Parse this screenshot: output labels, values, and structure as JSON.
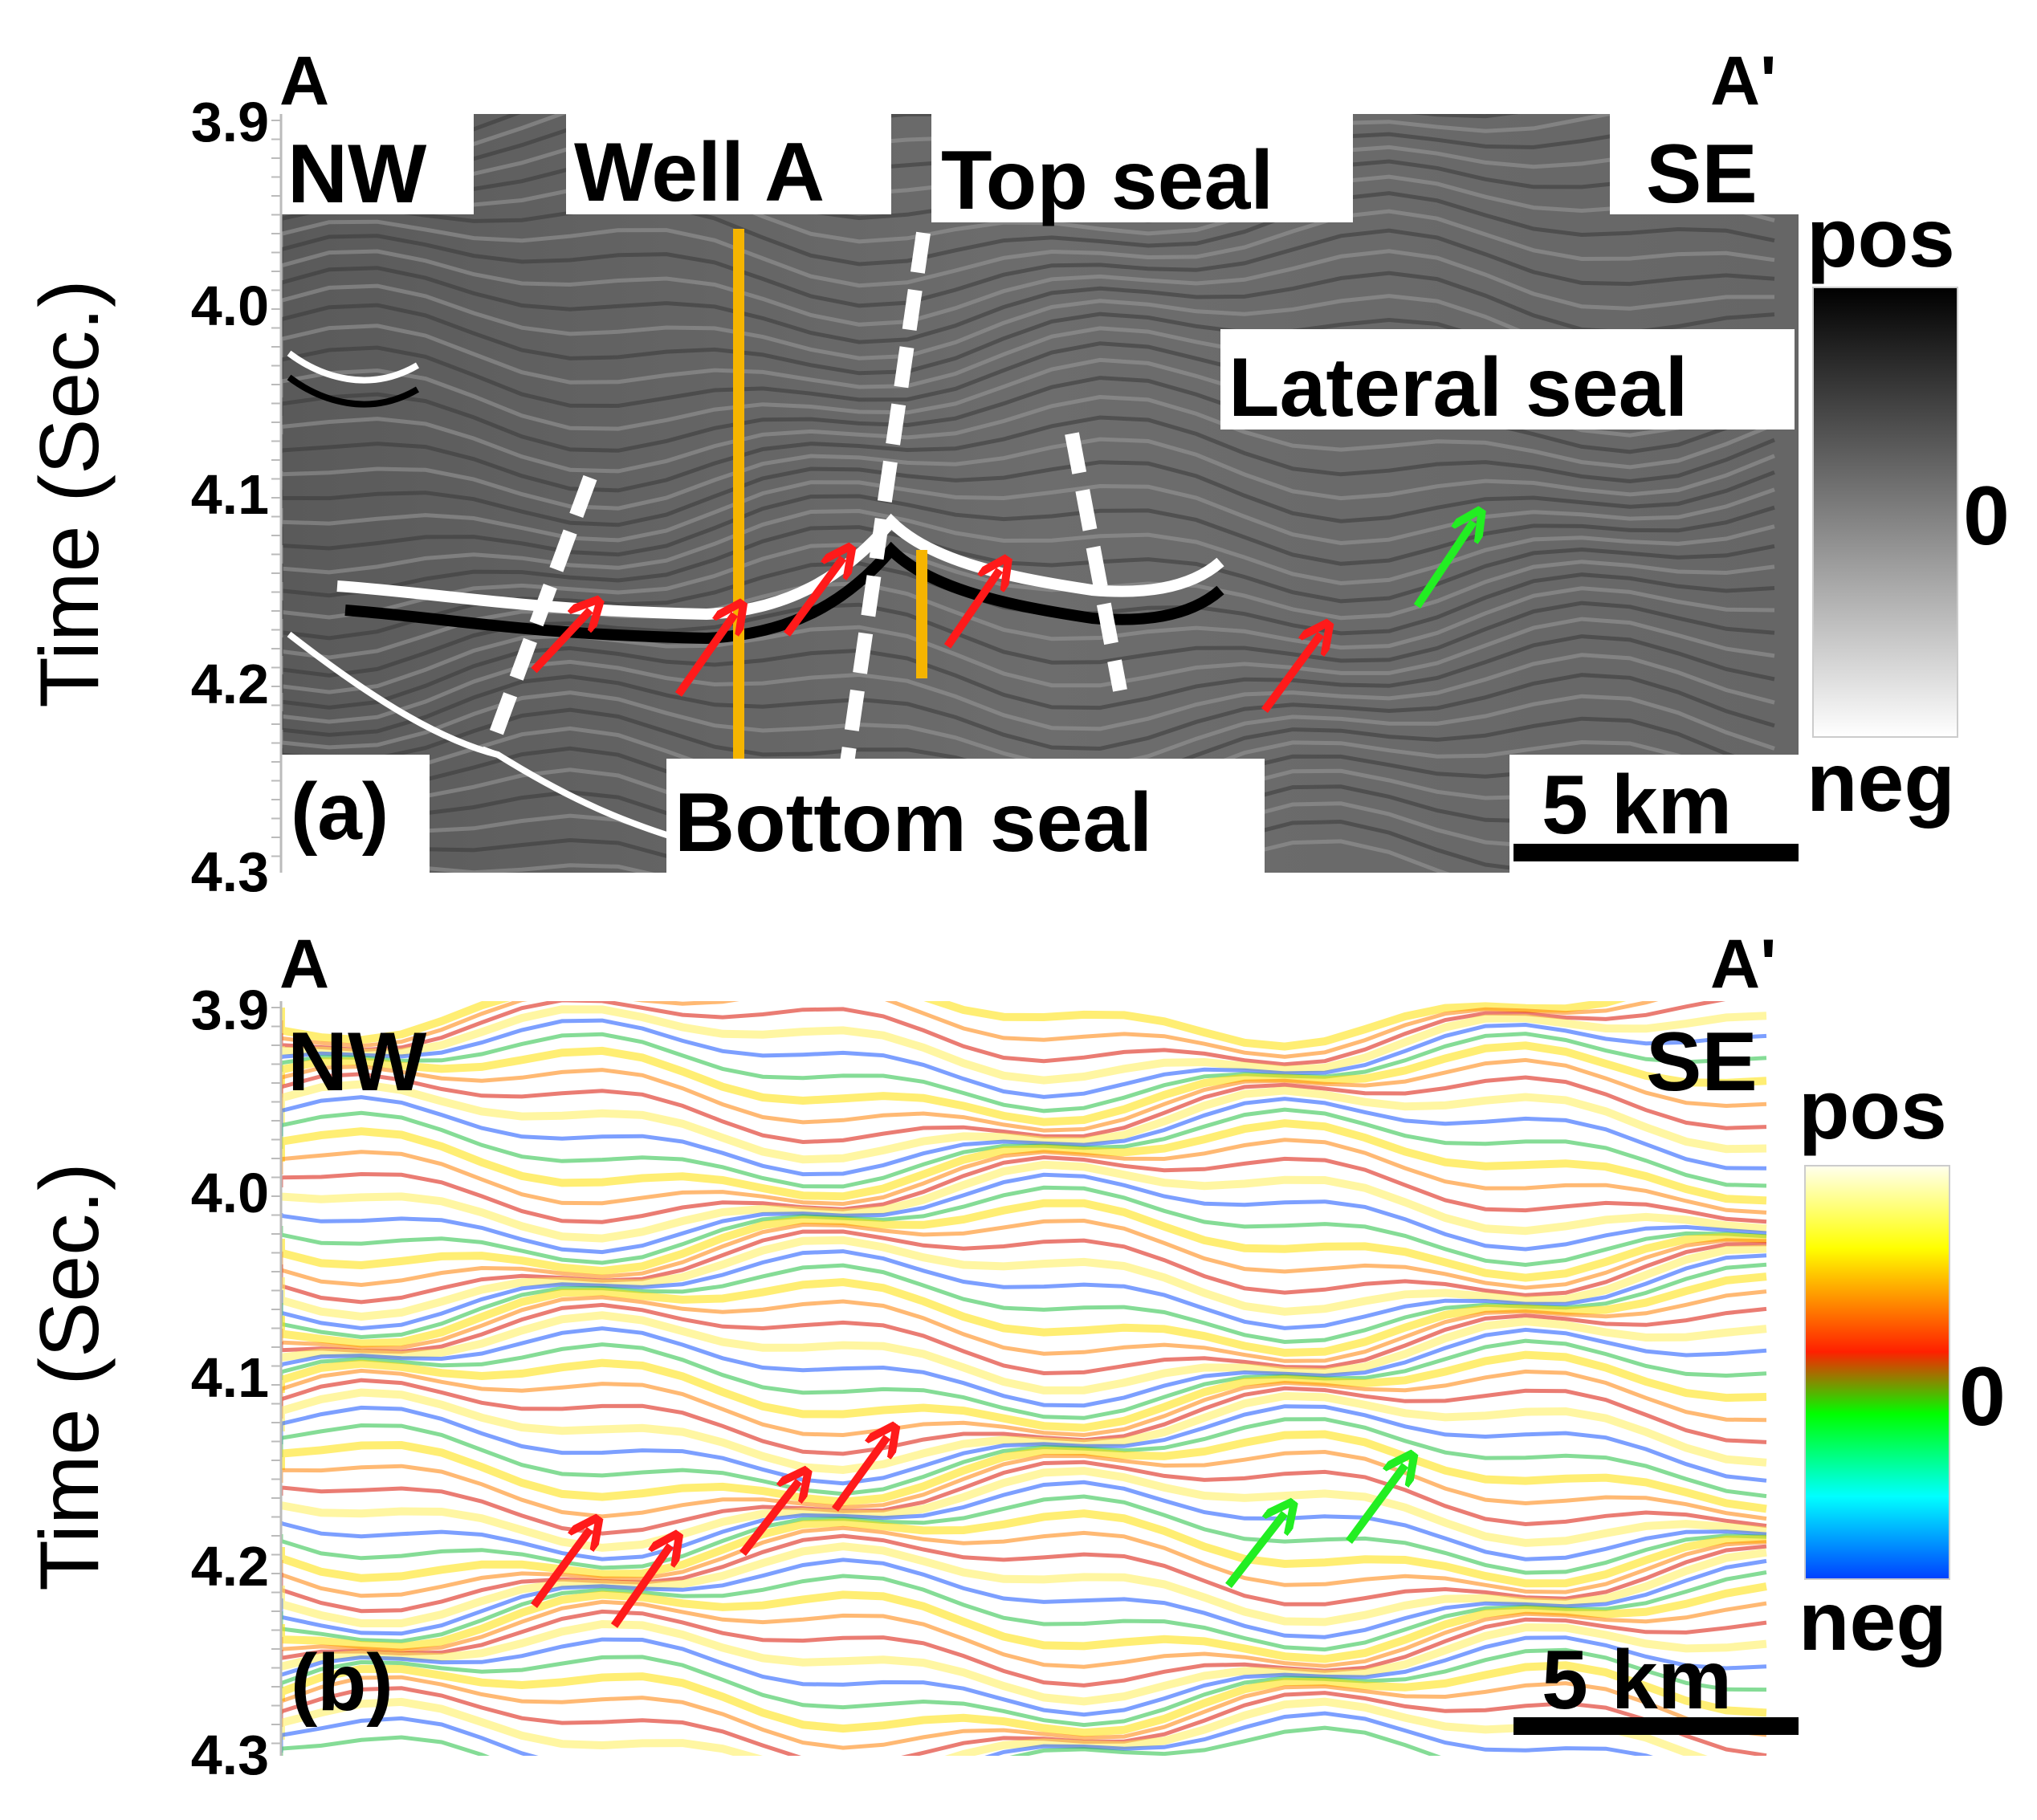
{
  "panel_a": {
    "label": "(a)",
    "left_end": "A",
    "right_end": "A'",
    "left_dir": "NW",
    "right_dir": "SE",
    "y_axis_label": "Time (Sec.)",
    "y_ticks": [
      "3.9",
      "4.0",
      "4.1",
      "4.2",
      "4.3"
    ],
    "annotations": {
      "well": "Well A",
      "top_seal": "Top seal",
      "lateral_seal": "Lateral seal",
      "bottom_seal": "Bottom seal"
    },
    "scale_bar": "5 km",
    "colorbar": {
      "top": "pos",
      "mid": "0",
      "bottom": "neg",
      "colors": [
        "#000000",
        "#7f7f7f",
        "#ffffff"
      ]
    },
    "arrow_colors": {
      "red": "#ff1a1a",
      "green": "#22ee22"
    },
    "well_color": "#f5b400"
  },
  "panel_b": {
    "label": "(b)",
    "left_end": "A",
    "right_end": "A'",
    "left_dir": "NW",
    "right_dir": "SE",
    "y_axis_label": "Time (Sec.)",
    "y_ticks": [
      "3.9",
      "4.0",
      "4.1",
      "4.2",
      "4.3"
    ],
    "scale_bar": "5 km",
    "colorbar": {
      "top": "pos",
      "mid": "0",
      "bottom": "neg",
      "colors": [
        "#ffffee",
        "#ffff00",
        "#ff2000",
        "#00ff00",
        "#00ffff",
        "#0040ff"
      ]
    }
  }
}
